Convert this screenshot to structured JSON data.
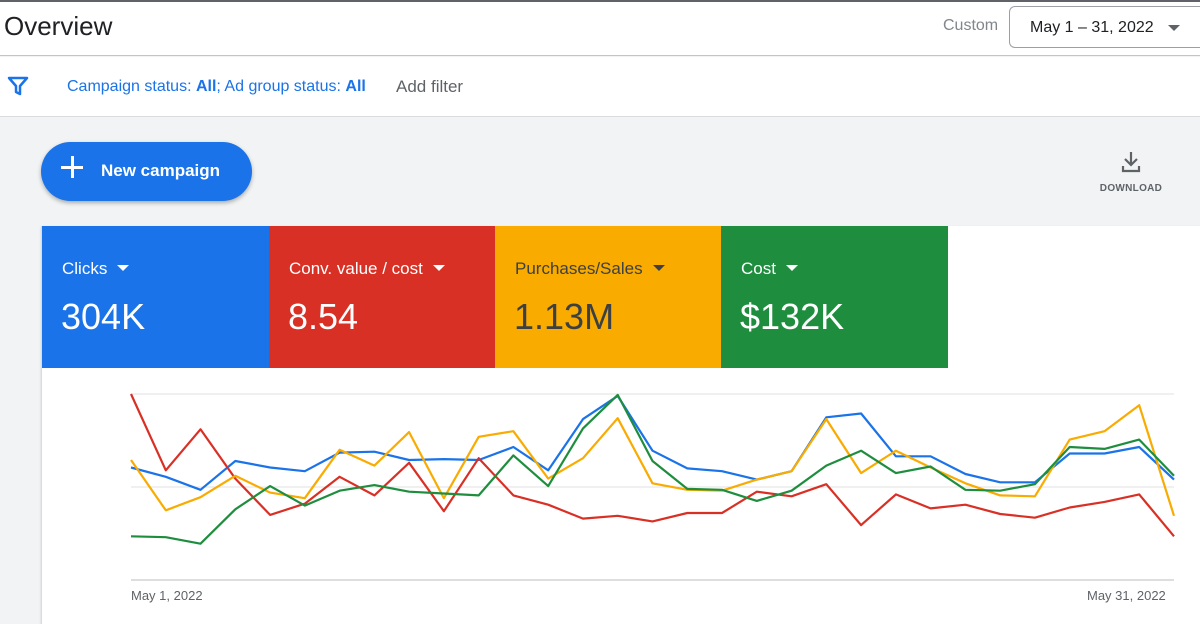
{
  "header": {
    "title": "Overview",
    "range_label": "Custom",
    "date_range": "May 1 – 31, 2022"
  },
  "filters": {
    "campaign_label": "Campaign status: ",
    "campaign_value": "All",
    "separator": "; ",
    "adgroup_label": "Ad group status: ",
    "adgroup_value": "All",
    "add_filter": "Add filter"
  },
  "actions": {
    "new_campaign": "New campaign",
    "download": "DOWNLOAD"
  },
  "scorecards": [
    {
      "label": "Clicks",
      "value": "304K",
      "color": "#1a73e8"
    },
    {
      "label": "Conv. value / cost",
      "value": "8.54",
      "color": "#d93025"
    },
    {
      "label": "Purchases/Sales",
      "value": "1.13M",
      "color": "#f9ab00"
    },
    {
      "label": "Cost",
      "value": "$132K",
      "color": "#1e8e3e"
    }
  ],
  "chart_data": {
    "type": "line",
    "grid": true,
    "x_start_label": "May 1, 2022",
    "x_end_label": "May 31, 2022",
    "ylim": [
      0,
      1
    ],
    "series": [
      {
        "color": "#1a73e8",
        "values": [
          0.605,
          0.555,
          0.485,
          0.64,
          0.605,
          0.585,
          0.685,
          0.69,
          0.645,
          0.65,
          0.645,
          0.715,
          0.59,
          0.865,
          0.99,
          0.695,
          0.6,
          0.585,
          0.54,
          0.585,
          0.875,
          0.895,
          0.665,
          0.665,
          0.57,
          0.525,
          0.525,
          0.68,
          0.68,
          0.715,
          0.54
        ]
      },
      {
        "color": "#d93025",
        "values": [
          1.0,
          0.59,
          0.81,
          0.545,
          0.35,
          0.41,
          0.555,
          0.455,
          0.63,
          0.37,
          0.655,
          0.455,
          0.405,
          0.33,
          0.345,
          0.315,
          0.36,
          0.36,
          0.475,
          0.45,
          0.515,
          0.295,
          0.46,
          0.385,
          0.405,
          0.355,
          0.335,
          0.39,
          0.42,
          0.46,
          0.235
        ]
      },
      {
        "color": "#f9ab00",
        "values": [
          0.645,
          0.375,
          0.445,
          0.56,
          0.47,
          0.44,
          0.7,
          0.615,
          0.795,
          0.44,
          0.77,
          0.8,
          0.545,
          0.655,
          0.87,
          0.52,
          0.485,
          0.48,
          0.54,
          0.585,
          0.865,
          0.575,
          0.695,
          0.605,
          0.52,
          0.455,
          0.45,
          0.755,
          0.8,
          0.94,
          0.345
        ]
      },
      {
        "color": "#1e8e3e",
        "values": [
          0.235,
          0.23,
          0.195,
          0.38,
          0.505,
          0.4,
          0.48,
          0.51,
          0.475,
          0.465,
          0.455,
          0.67,
          0.505,
          0.815,
          0.995,
          0.64,
          0.49,
          0.485,
          0.425,
          0.48,
          0.615,
          0.695,
          0.575,
          0.61,
          0.485,
          0.48,
          0.515,
          0.715,
          0.705,
          0.755,
          0.56
        ]
      }
    ]
  }
}
